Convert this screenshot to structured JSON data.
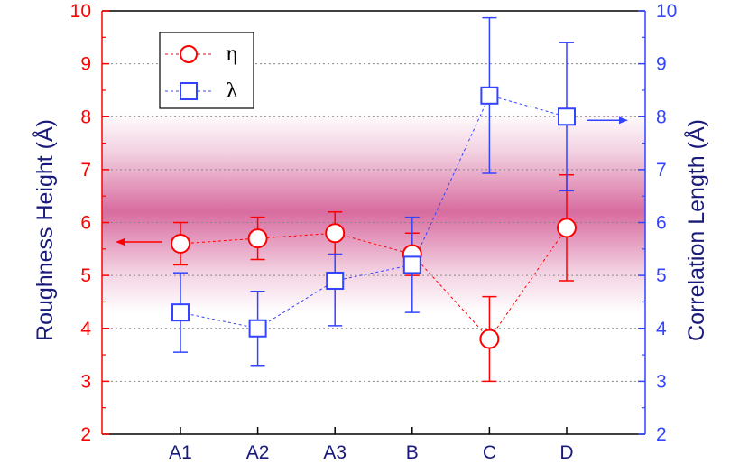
{
  "chart_data": {
    "type": "scatter",
    "categories": [
      "A1",
      "A2",
      "A3",
      "B",
      "C",
      "D"
    ],
    "xlabel": "",
    "ylabel_left": "Roughness Height (Å)",
    "ylabel_right": "Correlation Length (Å)",
    "ylim_left": [
      2,
      10
    ],
    "ylim_right": [
      2,
      10
    ],
    "yticks_left": [
      "2",
      "3",
      "4",
      "5",
      "6",
      "7",
      "8",
      "9",
      "10"
    ],
    "yticks_right": [
      "2",
      "3",
      "4",
      "5",
      "6",
      "7",
      "8",
      "9",
      "10"
    ],
    "grid": "horizontal dotted",
    "band": {
      "description": "shaded uncertainty band",
      "center": 6.2,
      "half_width": 1.9
    },
    "series": [
      {
        "name": "η",
        "axis": "left",
        "color": "#ff0000",
        "marker": "circle",
        "values": [
          5.6,
          5.7,
          5.8,
          5.4,
          3.8,
          5.9
        ],
        "err_low": [
          5.2,
          5.3,
          5.4,
          5.0,
          3.0,
          4.9
        ],
        "err_high": [
          6.0,
          6.1,
          6.2,
          5.8,
          4.6,
          6.9
        ]
      },
      {
        "name": "λ",
        "axis": "right",
        "color": "#3344ff",
        "marker": "square",
        "values": [
          4.3,
          4.0,
          4.9,
          5.2,
          8.4,
          8.0
        ],
        "err_low": [
          3.55,
          3.3,
          4.05,
          4.3,
          6.93,
          6.6
        ],
        "err_high": [
          5.05,
          4.7,
          5.4,
          6.1,
          9.87,
          9.4
        ]
      }
    ],
    "legend": {
      "position": "top-left",
      "entries": [
        "η",
        "λ"
      ]
    },
    "arrows": [
      {
        "series": "η",
        "points_to": "left axis",
        "at_category": "A1"
      },
      {
        "series": "λ",
        "points_to": "right axis",
        "at_category": "D"
      }
    ],
    "colors": {
      "left_axis": "#ff0000",
      "right_axis": "#3344ff",
      "axis_title": "#1a1a7a",
      "band": "#c8327a"
    }
  }
}
